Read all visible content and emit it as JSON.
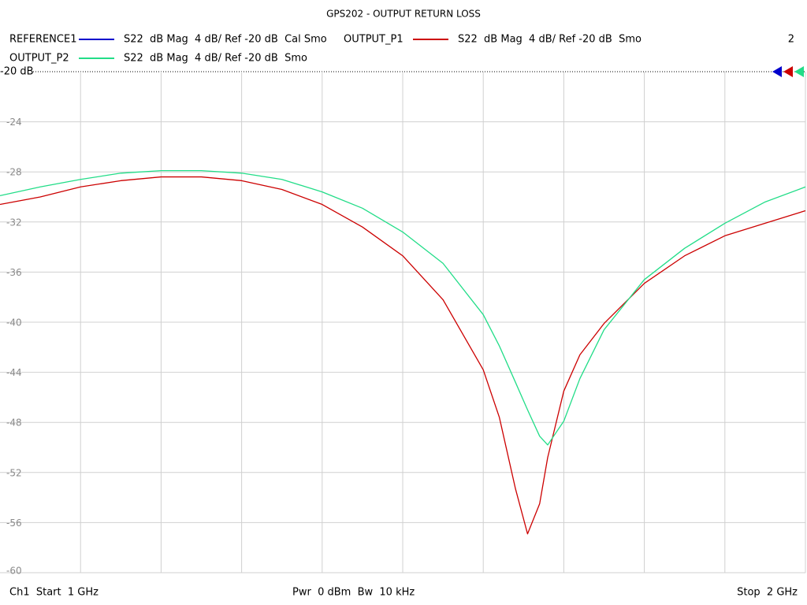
{
  "chart_data": {
    "type": "line",
    "title": "GPS202 - OUTPUT RETURN LOSS",
    "channel_count": "2",
    "ref_label": "-20 dB",
    "footer_left": "Ch1  Start  1 GHz",
    "footer_center": "Pwr  0 dBm  Bw  10 kHz",
    "footer_right": "Stop  2 GHz",
    "x": [
      1.0,
      1.05,
      1.1,
      1.15,
      1.2,
      1.25,
      1.3,
      1.35,
      1.4,
      1.45,
      1.5,
      1.55,
      1.6,
      1.62,
      1.64,
      1.655,
      1.67,
      1.68,
      1.7,
      1.72,
      1.75,
      1.8,
      1.85,
      1.9,
      1.95,
      2.0
    ],
    "xlim": [
      1.0,
      2.0
    ],
    "xticks": [
      1.1,
      1.2,
      1.3,
      1.4,
      1.5,
      1.6,
      1.7,
      1.8,
      1.9
    ],
    "ylim": [
      -60,
      -20
    ],
    "yticks": [
      -20,
      -24,
      -28,
      -32,
      -36,
      -40,
      -44,
      -48,
      -52,
      -56,
      -60
    ],
    "grid": true,
    "series": [
      {
        "name": "REFERENCE1",
        "description": "S22  dB Mag  4 dB/ Ref -20 dB  Cal Smo",
        "color": "#0000cc",
        "values": [
          null,
          null,
          null,
          null,
          null,
          null,
          null,
          null,
          null,
          null,
          null,
          null,
          null,
          null,
          null,
          null,
          null,
          null,
          null,
          null,
          null,
          null,
          null,
          null,
          null,
          null
        ]
      },
      {
        "name": "OUTPUT_P1",
        "description": "S22  dB Mag  4 dB/ Ref -20 dB  Smo",
        "color": "#cc0000",
        "values": [
          -30.6,
          -30.0,
          -29.2,
          -28.7,
          -28.4,
          -28.4,
          -28.7,
          -29.4,
          -30.6,
          -32.4,
          -34.7,
          -38.2,
          -43.8,
          -47.6,
          -53.3,
          -56.9,
          -54.5,
          -50.8,
          -45.5,
          -42.6,
          -40.1,
          -36.9,
          -34.7,
          -33.1,
          -32.1,
          -31.1
        ]
      },
      {
        "name": "OUTPUT_P2",
        "description": "S22  dB Mag  4 dB/ Ref -20 dB  Smo",
        "color": "#22dd88",
        "values": [
          -29.9,
          -29.2,
          -28.6,
          -28.1,
          -27.9,
          -27.9,
          -28.1,
          -28.6,
          -29.6,
          -30.9,
          -32.8,
          -35.3,
          -39.4,
          -41.9,
          -44.8,
          -47.0,
          -49.1,
          -49.8,
          -47.9,
          -44.5,
          -40.6,
          -36.6,
          -34.1,
          -32.1,
          -30.4,
          -29.2
        ]
      }
    ]
  }
}
